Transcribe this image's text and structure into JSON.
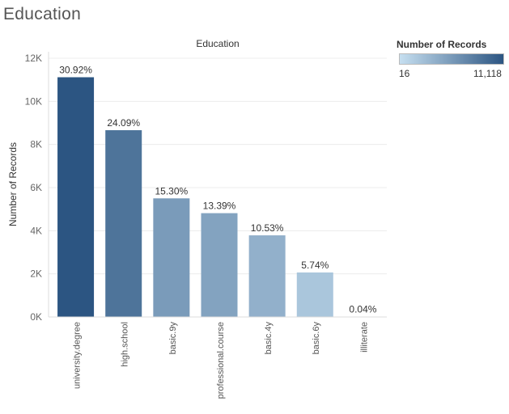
{
  "sheet_title": "Education",
  "legend": {
    "title": "Number of Records",
    "min_label": "16",
    "max_label": "11,118",
    "color_low": "#c6dff0",
    "color_high": "#2c5582"
  },
  "chart_data": {
    "type": "bar",
    "title": "Education",
    "xlabel": "",
    "ylabel": "Number of Records",
    "ylim": [
      0,
      12000
    ],
    "yticks": [
      0,
      2000,
      4000,
      6000,
      8000,
      10000,
      12000
    ],
    "ytick_labels": [
      "0K",
      "2K",
      "4K",
      "6K",
      "8K",
      "10K",
      "12K"
    ],
    "grid": true,
    "categories": [
      "university.degree",
      "high.school",
      "basic.9y",
      "professional.course",
      "basic.4y",
      "basic.6y",
      "illiterate"
    ],
    "values": [
      11118,
      8662,
      5501,
      4814,
      3786,
      2064,
      16
    ],
    "data_labels": [
      "30.92%",
      "24.09%",
      "15.30%",
      "13.39%",
      "10.53%",
      "5.74%",
      "0.04%"
    ]
  }
}
